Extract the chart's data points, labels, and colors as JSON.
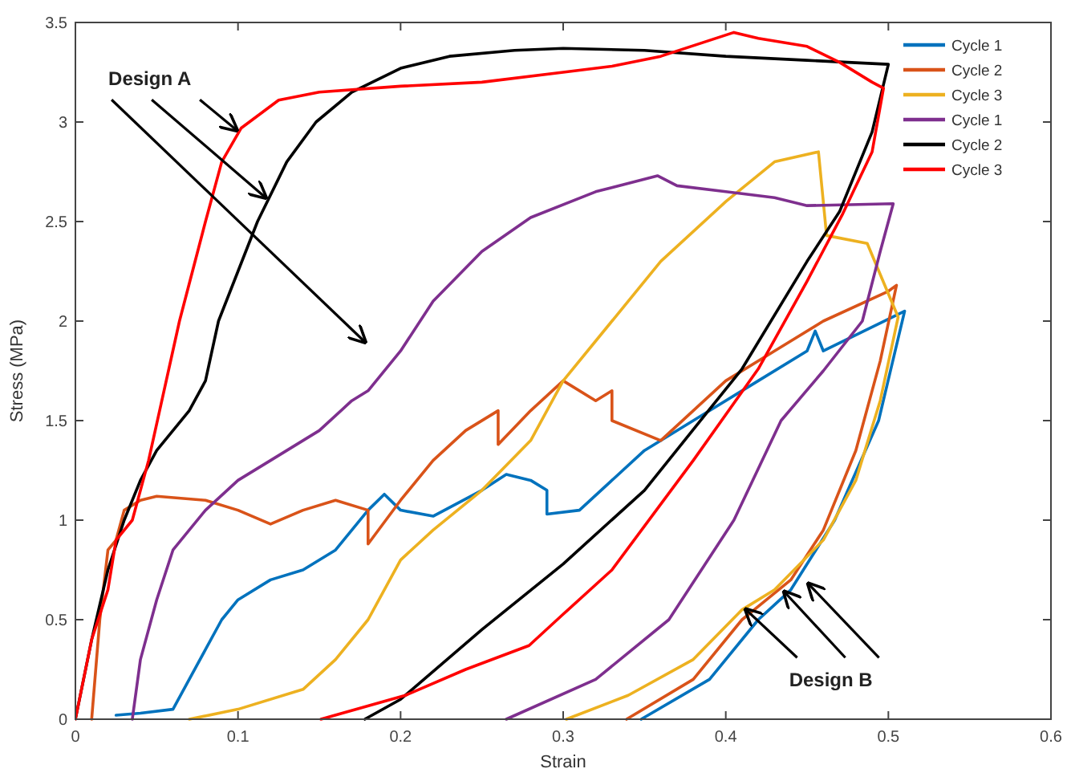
{
  "chart_data": {
    "type": "line",
    "xlabel": "Strain",
    "ylabel": "Stress (MPa)",
    "xlim": [
      0,
      0.6
    ],
    "xticks": [
      0,
      0.1,
      0.2,
      0.3,
      0.4,
      0.5,
      0.6
    ],
    "ylim": [
      0,
      3.5
    ],
    "yticks": [
      0,
      0.5,
      1,
      1.5,
      2,
      2.5,
      3,
      3.5
    ],
    "grid": false,
    "legend": "top right",
    "marker": "none",
    "line_style": "solid",
    "annotations": [
      {
        "text": "Design A",
        "x": 0.117,
        "y": 2.62
      },
      {
        "text": "Design B",
        "x": 0.436,
        "y": 0.64
      }
    ],
    "series": [
      {
        "name": "Cycle 1",
        "color": "#0072bd",
        "x": [
          0.025,
          0.04,
          0.06,
          0.07,
          0.08,
          0.09,
          0.1,
          0.12,
          0.14,
          0.16,
          0.18,
          0.19,
          0.2,
          0.22,
          0.25,
          0.265,
          0.28,
          0.29,
          0.29,
          0.31,
          0.35,
          0.38,
          0.42,
          0.45,
          0.455,
          0.46,
          0.51,
          0.494,
          0.467,
          0.44,
          0.42,
          0.39,
          0.348
        ],
        "values": [
          0.02,
          0.03,
          0.05,
          0.2,
          0.35,
          0.5,
          0.6,
          0.7,
          0.75,
          0.85,
          1.05,
          1.13,
          1.05,
          1.02,
          1.15,
          1.23,
          1.2,
          1.15,
          1.03,
          1.05,
          1.35,
          1.5,
          1.7,
          1.85,
          1.95,
          1.85,
          2.05,
          1.5,
          1.0,
          0.65,
          0.5,
          0.2,
          0.0
        ]
      },
      {
        "name": "Cycle 2",
        "color": "#d95319",
        "x": [
          0.01,
          0.015,
          0.02,
          0.025,
          0.03,
          0.04,
          0.05,
          0.08,
          0.1,
          0.12,
          0.14,
          0.16,
          0.18,
          0.18,
          0.2,
          0.22,
          0.24,
          0.26,
          0.26,
          0.28,
          0.3,
          0.32,
          0.33,
          0.33,
          0.36,
          0.38,
          0.4,
          0.43,
          0.46,
          0.5,
          0.505,
          0.495,
          0.48,
          0.46,
          0.44,
          0.41,
          0.38,
          0.339
        ],
        "values": [
          0,
          0.5,
          0.85,
          0.9,
          1.05,
          1.1,
          1.12,
          1.1,
          1.05,
          0.98,
          1.05,
          1.1,
          1.05,
          0.88,
          1.1,
          1.3,
          1.45,
          1.55,
          1.38,
          1.55,
          1.7,
          1.6,
          1.65,
          1.5,
          1.4,
          1.55,
          1.7,
          1.85,
          2.0,
          2.15,
          2.18,
          1.8,
          1.35,
          0.95,
          0.7,
          0.5,
          0.2,
          0.0
        ]
      },
      {
        "name": "Cycle 3",
        "color": "#edb120",
        "x": [
          0.07,
          0.1,
          0.14,
          0.16,
          0.18,
          0.2,
          0.22,
          0.25,
          0.28,
          0.3,
          0.33,
          0.36,
          0.4,
          0.43,
          0.457,
          0.462,
          0.487,
          0.506,
          0.495,
          0.48,
          0.46,
          0.43,
          0.41,
          0.38,
          0.34,
          0.302
        ],
        "values": [
          0,
          0.05,
          0.15,
          0.3,
          0.5,
          0.8,
          0.95,
          1.15,
          1.4,
          1.7,
          2.0,
          2.3,
          2.6,
          2.8,
          2.85,
          2.43,
          2.39,
          2.02,
          1.6,
          1.2,
          0.9,
          0.65,
          0.55,
          0.3,
          0.12,
          0.0
        ]
      },
      {
        "name": "Cycle 1",
        "color": "#7e2f8e",
        "x": [
          0.035,
          0.04,
          0.05,
          0.06,
          0.08,
          0.1,
          0.12,
          0.15,
          0.17,
          0.18,
          0.2,
          0.22,
          0.25,
          0.28,
          0.32,
          0.358,
          0.37,
          0.4,
          0.43,
          0.45,
          0.503,
          0.495,
          0.484,
          0.46,
          0.434,
          0.405,
          0.365,
          0.32,
          0.265
        ],
        "values": [
          0,
          0.3,
          0.6,
          0.85,
          1.05,
          1.2,
          1.3,
          1.45,
          1.6,
          1.65,
          1.85,
          2.1,
          2.35,
          2.52,
          2.65,
          2.73,
          2.68,
          2.65,
          2.62,
          2.58,
          2.59,
          2.35,
          2.0,
          1.75,
          1.5,
          1.0,
          0.5,
          0.2,
          0
        ]
      },
      {
        "name": "Cycle 2",
        "color": "#000000",
        "x": [
          0,
          0.01,
          0.02,
          0.03,
          0.04,
          0.05,
          0.06,
          0.07,
          0.08,
          0.088,
          0.1,
          0.112,
          0.13,
          0.148,
          0.17,
          0.2,
          0.23,
          0.27,
          0.3,
          0.35,
          0.4,
          0.45,
          0.5,
          0.49,
          0.47,
          0.45,
          0.41,
          0.35,
          0.3,
          0.25,
          0.2,
          0.178
        ],
        "values": [
          0,
          0.4,
          0.75,
          1.0,
          1.2,
          1.35,
          1.45,
          1.55,
          1.7,
          2.0,
          2.25,
          2.5,
          2.8,
          3.0,
          3.15,
          3.27,
          3.33,
          3.36,
          3.37,
          3.36,
          3.33,
          3.31,
          3.29,
          2.95,
          2.55,
          2.3,
          1.76,
          1.15,
          0.78,
          0.45,
          0.1,
          0
        ]
      },
      {
        "name": "Cycle 3",
        "color": "#ff0000",
        "x": [
          0,
          0.01,
          0.02,
          0.025,
          0.035,
          0.045,
          0.064,
          0.08,
          0.09,
          0.102,
          0.125,
          0.15,
          0.2,
          0.25,
          0.3,
          0.33,
          0.36,
          0.405,
          0.42,
          0.45,
          0.47,
          0.49,
          0.497,
          0.49,
          0.472,
          0.45,
          0.42,
          0.38,
          0.33,
          0.299,
          0.279,
          0.24,
          0.203,
          0.151
        ],
        "values": [
          0,
          0.4,
          0.65,
          0.9,
          1.0,
          1.3,
          2.0,
          2.5,
          2.8,
          2.97,
          3.11,
          3.15,
          3.18,
          3.2,
          3.25,
          3.28,
          3.33,
          3.45,
          3.42,
          3.38,
          3.3,
          3.2,
          3.17,
          2.85,
          2.54,
          2.2,
          1.76,
          1.3,
          0.75,
          0.52,
          0.37,
          0.25,
          0.12,
          0
        ]
      }
    ]
  }
}
